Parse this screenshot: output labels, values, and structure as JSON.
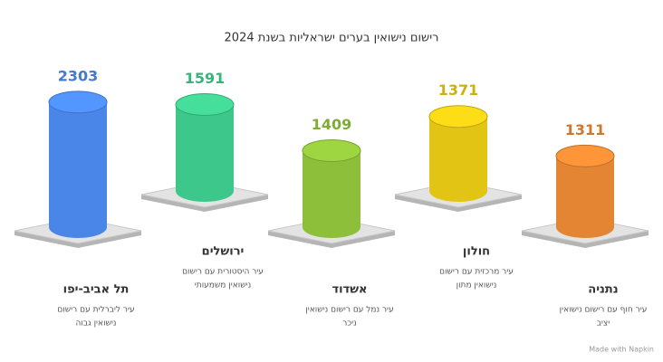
{
  "chart_data": {
    "type": "cylinder",
    "title": "רישום נישואין בערים ישראליות בשנת 2024",
    "categories": [
      "תל אביב-יפו",
      "ירושלים",
      "אשדוד",
      "חולון",
      "נתניה"
    ],
    "values": [
      2303,
      1591,
      1409,
      1371,
      1311
    ],
    "colors": [
      "#4a86e8",
      "#3ec78a",
      "#8dbf3a",
      "#e2c514",
      "#e38532"
    ],
    "descriptions": [
      [
        "עיר ליברלית עם רישום",
        "נישואין גבוה"
      ],
      [
        "עיר היסטורית עם רישום",
        "נישואין משמעותי"
      ],
      [
        "עיר נמל עם רישום נישואין",
        "ניכר"
      ],
      [
        "עיר מרכזית עם רישום",
        "נישואין מתון"
      ],
      [
        "עיר חוף עם רישום נישואין",
        "יציב"
      ]
    ]
  },
  "footer": "Made with Napkin"
}
